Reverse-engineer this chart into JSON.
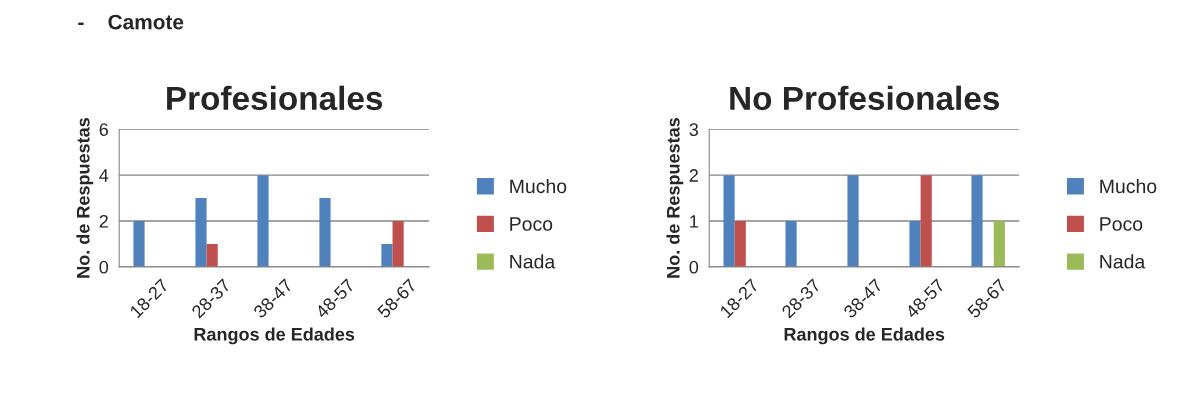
{
  "chart_data": [
    {
      "type": "bar",
      "title": "Profesionales",
      "xlabel": "Rangos de Edades",
      "ylabel": "No. de Respuestas",
      "annotations": [
        "-    Camote"
      ],
      "categories": [
        "18-27",
        "28-37",
        "38-47",
        "48-57",
        "58-67"
      ],
      "series": [
        {
          "name": "Mucho",
          "color": "#4f81bd",
          "values": [
            2,
            3,
            4,
            3,
            1
          ]
        },
        {
          "name": "Poco",
          "color": "#c0504d",
          "values": [
            null,
            1,
            null,
            null,
            2
          ]
        },
        {
          "name": "Nada",
          "color": "#9bbb59",
          "values": [
            null,
            null,
            null,
            null,
            null
          ]
        }
      ],
      "ylim": [
        0,
        6
      ],
      "yticks": [
        0,
        2,
        4,
        6
      ],
      "grid": "y",
      "legend": "right"
    },
    {
      "type": "bar",
      "title": "No Profesionales",
      "xlabel": "Rangos de Edades",
      "ylabel": "No. de Respuestas",
      "categories": [
        "18-27",
        "28-37",
        "38-47",
        "48-57",
        "58-67"
      ],
      "series": [
        {
          "name": "Mucho",
          "color": "#4f81bd",
          "values": [
            2,
            1,
            2,
            1,
            2
          ]
        },
        {
          "name": "Poco",
          "color": "#c0504d",
          "values": [
            1,
            null,
            null,
            2,
            null
          ]
        },
        {
          "name": "Nada",
          "color": "#9bbb59",
          "values": [
            null,
            null,
            null,
            null,
            1
          ]
        }
      ],
      "ylim": [
        0,
        3
      ],
      "yticks": [
        0,
        1,
        2,
        3
      ],
      "grid": "y",
      "legend": "right"
    }
  ]
}
